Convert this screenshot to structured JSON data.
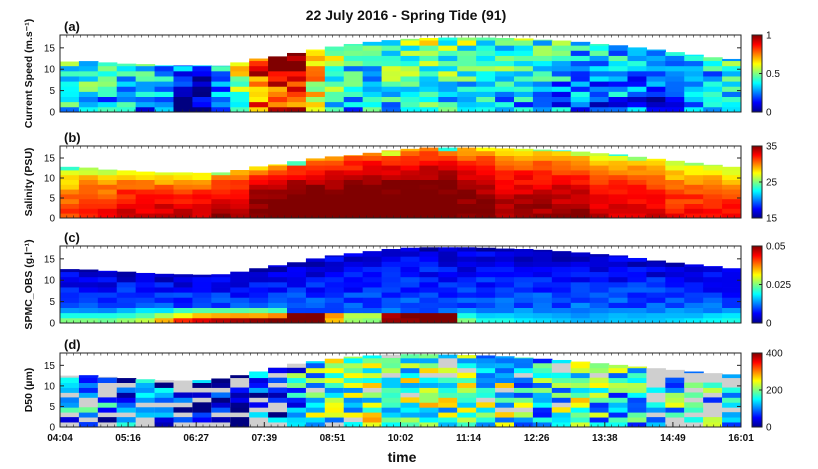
{
  "figure_title": "22 July 2016 - Spring Tide (91)",
  "xlabel": "time",
  "chart_data": [
    {
      "id": "a",
      "type": "heatmap",
      "panel_label": "(a)",
      "ylabel": "Current Speed (m.s⁻¹)",
      "ylim": [
        0,
        18
      ],
      "yticks": [
        "0",
        "5",
        "10",
        "15"
      ],
      "colorbar": {
        "range": [
          0,
          1
        ],
        "ticks": [
          "0",
          "0.5",
          "1"
        ]
      },
      "xtick_labels": [
        "04:04",
        "05:16",
        "06:27",
        "07:39",
        "08:51",
        "10:02",
        "11:14",
        "12:26",
        "13:38",
        "14:49",
        "16:01"
      ],
      "surface_depth": [
        11.8,
        11.9,
        11.6,
        11.3,
        11.2,
        10.9,
        10.9,
        10.9,
        10.8,
        11.6,
        12.5,
        13.0,
        13.8,
        14.6,
        15.3,
        15.9,
        16.4,
        16.8,
        17.1,
        17.3,
        17.4,
        17.4,
        17.4,
        17.3,
        17.2,
        16.9,
        16.7,
        16.4,
        15.9,
        15.6,
        15.1,
        14.6,
        14.0,
        13.4,
        12.8,
        12.4
      ],
      "column_mean": [
        0.4,
        0.38,
        0.36,
        0.36,
        0.3,
        0.26,
        0.18,
        0.14,
        0.28,
        0.55,
        0.82,
        0.88,
        0.9,
        0.65,
        0.45,
        0.38,
        0.4,
        0.42,
        0.44,
        0.46,
        0.44,
        0.42,
        0.4,
        0.38,
        0.36,
        0.34,
        0.32,
        0.3,
        0.28,
        0.3,
        0.28,
        0.22,
        0.24,
        0.28,
        0.3,
        0.34
      ]
    },
    {
      "id": "b",
      "type": "heatmap",
      "panel_label": "(b)",
      "ylabel": "Salinity (PSU)",
      "ylim": [
        0,
        18
      ],
      "yticks": [
        "0",
        "5",
        "10",
        "15"
      ],
      "colorbar": {
        "range": [
          15,
          35
        ],
        "ticks": [
          "15",
          "25",
          "35"
        ]
      },
      "surface_depth": [
        12.8,
        12.6,
        12.1,
        11.9,
        11.6,
        11.4,
        11.4,
        11.3,
        11.4,
        12.0,
        12.9,
        13.4,
        14.2,
        14.9,
        15.4,
        15.7,
        16.3,
        16.9,
        17.3,
        17.6,
        17.6,
        17.6,
        17.6,
        17.4,
        17.3,
        17.1,
        16.9,
        16.6,
        16.2,
        15.9,
        15.3,
        14.8,
        14.3,
        13.8,
        13.3,
        12.8
      ],
      "column_mean": [
        29,
        30,
        30,
        31,
        31,
        31,
        31,
        31,
        32,
        32,
        33,
        33,
        34,
        34,
        34,
        34,
        34,
        34,
        34,
        34,
        34,
        33,
        33,
        32,
        32,
        32,
        32,
        32,
        31,
        31,
        31,
        31,
        30,
        30,
        30,
        30
      ]
    },
    {
      "id": "c",
      "type": "heatmap",
      "panel_label": "(c)",
      "ylabel": "SPMC_OBS (g.l⁻¹)",
      "ylim": [
        0,
        18
      ],
      "yticks": [
        "0",
        "5",
        "10",
        "15"
      ],
      "colorbar": {
        "range": [
          0,
          0.05
        ],
        "ticks": [
          "0",
          "0.025",
          "0.05"
        ]
      },
      "surface_depth": [
        12.6,
        12.5,
        12.2,
        12.0,
        11.7,
        11.5,
        11.4,
        11.3,
        11.4,
        12.0,
        12.8,
        13.5,
        14.2,
        15.1,
        15.8,
        16.3,
        16.8,
        17.3,
        17.6,
        17.7,
        17.7,
        17.7,
        17.6,
        17.4,
        17.3,
        17.1,
        16.8,
        16.5,
        16.1,
        15.8,
        15.2,
        14.6,
        14.1,
        13.7,
        13.3,
        12.8
      ],
      "near_bed_max": [
        0.025,
        0.025,
        0.024,
        0.026,
        0.028,
        0.035,
        0.042,
        0.045,
        0.047,
        0.048,
        0.049,
        0.05,
        0.05,
        0.05,
        0.03,
        0.02,
        0.02,
        0.045,
        0.048,
        0.05,
        0.05,
        0.025,
        0.02,
        0.02,
        0.018,
        0.017,
        0.016,
        0.015,
        0.015,
        0.016,
        0.016,
        0.016,
        0.017,
        0.018,
        0.019,
        0.02
      ]
    },
    {
      "id": "d",
      "type": "heatmap",
      "panel_label": "(d)",
      "ylabel": "D50 (µm)",
      "ylim": [
        0,
        18
      ],
      "yticks": [
        "0",
        "5",
        "10",
        "15"
      ],
      "colorbar": {
        "range": [
          0,
          400
        ],
        "ticks": [
          "0",
          "200",
          "400"
        ]
      },
      "surface_depth": [
        12.5,
        12.6,
        12.2,
        11.9,
        11.6,
        11.4,
        11.3,
        11.4,
        11.8,
        12.6,
        13.5,
        14.5,
        15.4,
        16.0,
        16.6,
        17.1,
        17.4,
        17.6,
        17.7,
        17.7,
        17.6,
        17.5,
        17.4,
        17.2,
        16.9,
        16.6,
        16.3,
        15.9,
        15.5,
        15.1,
        14.7,
        14.3,
        13.9,
        13.5,
        13.1,
        12.8
      ],
      "column_mean": [
        110,
        100,
        100,
        90,
        80,
        70,
        60,
        50,
        45,
        45,
        50,
        60,
        130,
        170,
        190,
        180,
        200,
        190,
        180,
        200,
        190,
        180,
        170,
        180,
        160,
        150,
        170,
        180,
        160,
        150,
        140,
        150,
        150,
        160,
        150,
        140
      ]
    }
  ]
}
